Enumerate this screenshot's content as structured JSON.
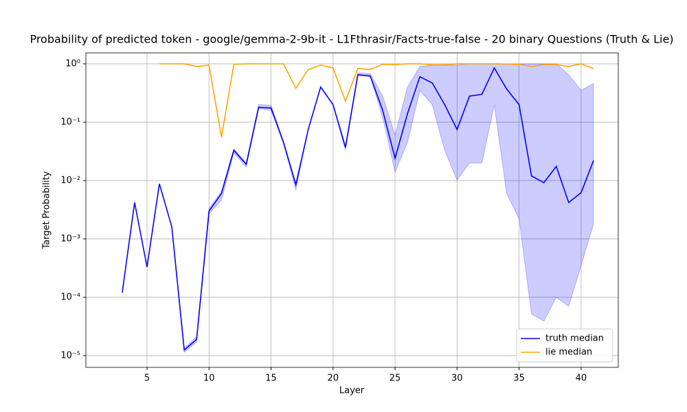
{
  "chart_data": {
    "type": "line",
    "title": "Probability of predicted token - google/gemma-2-9b-it - L1Fthrasir/Facts-true-false - 20 binary Questions (Truth & Lie)",
    "x_label": "Layer",
    "y_label": "Target Probability",
    "log_scale_y": true,
    "grid": true,
    "legend_position": "lower right",
    "xlim": [
      0.07,
      43
    ],
    "xticks": [
      5,
      10,
      15,
      20,
      25,
      30,
      35,
      40
    ],
    "ylim": [
      6.3e-06,
      1.54
    ],
    "yticks": [
      {
        "value": 1,
        "label": "10⁰"
      },
      {
        "value": 0.1,
        "label": "10⁻¹"
      },
      {
        "value": 0.01,
        "label": "10⁻²"
      },
      {
        "value": 0.001,
        "label": "10⁻³"
      },
      {
        "value": 0.0001,
        "label": "10⁻⁴"
      },
      {
        "value": 1e-05,
        "label": "10⁻⁵"
      }
    ],
    "x": [
      3,
      4,
      5,
      6,
      7,
      8,
      9,
      10,
      11,
      12,
      13,
      14,
      15,
      16,
      17,
      18,
      19,
      20,
      21,
      22,
      23,
      24,
      25,
      26,
      27,
      28,
      29,
      30,
      31,
      32,
      33,
      34,
      35,
      36,
      37,
      38,
      39,
      40,
      41
    ],
    "series": [
      {
        "name": "truth median",
        "color": "#0000ff",
        "values": [
          0.00012,
          0.0042,
          0.00033,
          0.0088,
          0.0016,
          1.25e-05,
          1.9e-05,
          0.003,
          0.006,
          0.033,
          0.019,
          0.18,
          0.175,
          0.045,
          0.0085,
          0.075,
          0.4,
          0.2,
          0.037,
          0.65,
          0.62,
          0.16,
          0.024,
          0.14,
          0.6,
          0.47,
          0.2,
          0.075,
          0.28,
          0.3,
          0.85,
          0.37,
          0.2,
          0.012,
          0.0092,
          0.0175,
          0.0042,
          0.0062,
          0.022
        ],
        "band_color": "#0000ff",
        "band_lower": [
          0.00012,
          0.0042,
          0.00033,
          0.0088,
          0.0016,
          1.15e-05,
          1.7e-05,
          0.0027,
          0.0046,
          0.03,
          0.017,
          0.17,
          0.16,
          0.045,
          0.0068,
          0.075,
          0.4,
          0.2,
          0.033,
          0.63,
          0.6,
          0.12,
          0.014,
          0.045,
          0.35,
          0.2,
          0.033,
          0.0102,
          0.02,
          0.02,
          0.2,
          0.006,
          0.0022,
          5.2e-05,
          3.9e-05,
          0.0001,
          7e-05,
          0.00035,
          0.0018
        ],
        "band_upper": [
          0.00012,
          0.0042,
          0.00033,
          0.0088,
          0.0016,
          1.35e-05,
          2.1e-05,
          0.0033,
          0.0065,
          0.035,
          0.02,
          0.2,
          0.195,
          0.048,
          0.009,
          0.075,
          0.4,
          0.2,
          0.04,
          0.7,
          0.68,
          0.28,
          0.06,
          0.4,
          0.9,
          0.95,
          0.95,
          0.95,
          1,
          1,
          1,
          1,
          1,
          1,
          1,
          1,
          0.65,
          0.35,
          0.46
        ]
      },
      {
        "name": "lie median",
        "color": "#ffa500",
        "values": [
          null,
          null,
          null,
          1,
          1,
          1,
          0.9,
          0.95,
          0.055,
          0.98,
          1,
          1,
          1,
          1,
          0.38,
          0.8,
          0.95,
          0.85,
          0.23,
          0.83,
          0.8,
          0.98,
          0.97,
          1,
          1,
          0.96,
          0.96,
          1,
          1,
          1,
          1,
          0.99,
          0.98,
          0.9,
          0.97,
          0.97,
          0.9,
          1,
          0.83
        ]
      }
    ]
  }
}
